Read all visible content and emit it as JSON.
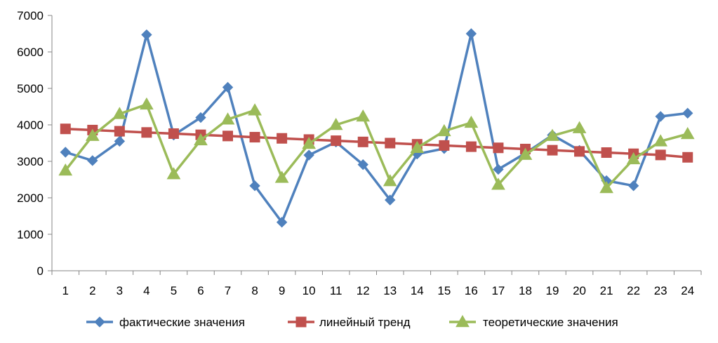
{
  "chart_data": {
    "type": "line",
    "title": "",
    "xlabel": "",
    "ylabel": "",
    "categories": [
      "1",
      "2",
      "3",
      "4",
      "5",
      "6",
      "7",
      "8",
      "9",
      "10",
      "11",
      "12",
      "13",
      "14",
      "15",
      "16",
      "17",
      "18",
      "19",
      "20",
      "21",
      "22",
      "23",
      "24"
    ],
    "y_ticks": [
      "0",
      "1000",
      "2000",
      "3000",
      "4000",
      "5000",
      "6000",
      "7000"
    ],
    "ylim": [
      0,
      7000
    ],
    "grid": false,
    "legend_position": "bottom",
    "series": [
      {
        "name": "фактические значения",
        "color": "#4F81BD",
        "marker": "diamond",
        "values": [
          3250,
          3020,
          3550,
          6470,
          3720,
          4200,
          5030,
          2330,
          1330,
          3170,
          3530,
          2910,
          1940,
          3200,
          3350,
          6500,
          2780,
          3220,
          3720,
          3300,
          2470,
          2330,
          4230,
          4320
        ]
      },
      {
        "name": "линейный тренд",
        "color": "#C0504D",
        "marker": "square",
        "values": [
          3890,
          3857,
          3825,
          3792,
          3760,
          3727,
          3695,
          3662,
          3630,
          3597,
          3565,
          3532,
          3500,
          3467,
          3435,
          3402,
          3370,
          3337,
          3305,
          3272,
          3240,
          3207,
          3175,
          3110
        ]
      },
      {
        "name": "теоретические значения",
        "color": "#9BBB59",
        "marker": "triangle",
        "values": [
          2750,
          3700,
          4300,
          4560,
          2650,
          3580,
          4150,
          4400,
          2550,
          3480,
          4000,
          4230,
          2460,
          3370,
          3830,
          4060,
          2360,
          3180,
          3700,
          3910,
          2270,
          3060,
          3550,
          3750
        ]
      }
    ]
  }
}
